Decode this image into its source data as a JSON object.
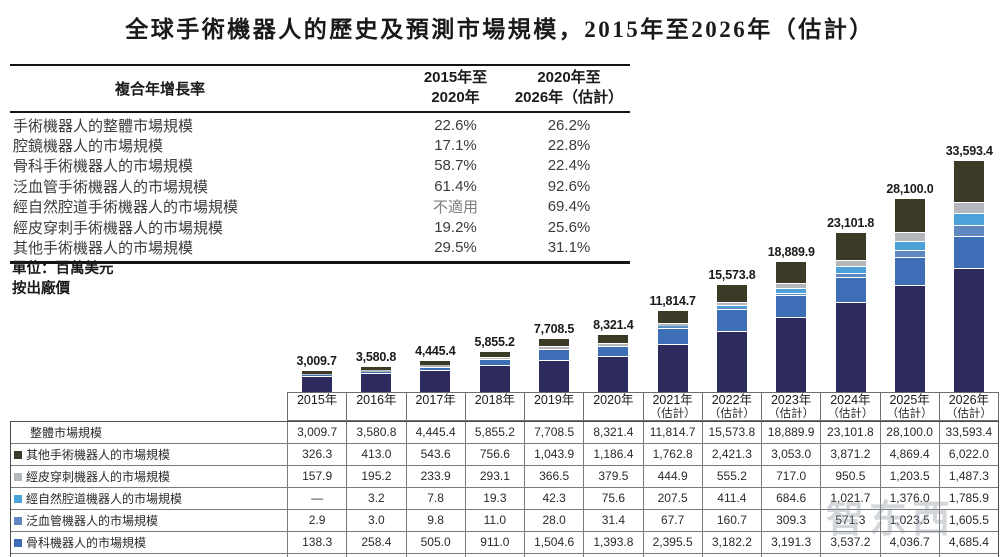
{
  "title": "全球手術機器人的歷史及預測市場規模，2015年至2026年（估計）",
  "cagr": {
    "header_label": "複合年增長率",
    "col1_line1": "2015年至",
    "col1_line2": "2020年",
    "col2_line1": "2020年至",
    "col2_line2": "2026年（估計）",
    "na_text": "不適用",
    "rows": [
      {
        "label": "手術機器人的整體市場規模",
        "v1": "22.6%",
        "v2": "26.2%"
      },
      {
        "label": "腔鏡機器人的市場規模",
        "v1": "17.1%",
        "v2": "22.8%"
      },
      {
        "label": "骨科手術機器人的市場規模",
        "v1": "58.7%",
        "v2": "22.4%"
      },
      {
        "label": "泛血管手術機器人的市場規模",
        "v1": "61.4%",
        "v2": "92.6%"
      },
      {
        "label": "經自然腔道手術機器人的市場規模",
        "v1": "不適用",
        "v2": "69.4%"
      },
      {
        "label": "經皮穿刺手術機器人的市場規模",
        "v1": "19.2%",
        "v2": "25.6%"
      },
      {
        "label": "其他手術機器人的市場規模",
        "v1": "29.5%",
        "v2": "31.1%"
      }
    ]
  },
  "unit_note_line1": "單位：百萬美元",
  "unit_note_line2": "按出廠價",
  "chart_data": {
    "type": "bar",
    "subtype": "stacked",
    "unit": "百萬美元",
    "categories": [
      "2015年",
      "2016年",
      "2017年",
      "2018年",
      "2019年",
      "2020年",
      "2021年",
      "2022年",
      "2023年",
      "2024年",
      "2025年",
      "2026年"
    ],
    "estimate_note": "（估計）",
    "estimate_from_index": 6,
    "total_label": "整體市場規模",
    "totals": [
      3009.7,
      3580.8,
      4445.4,
      5855.2,
      7708.5,
      8321.4,
      11814.7,
      15573.8,
      18889.9,
      23101.8,
      28100.0,
      33593.4
    ],
    "ylim": [
      0,
      33593.4
    ],
    "grid": false,
    "legend_position": "table-left",
    "series": [
      {
        "name": "其他手術機器人的市場規模",
        "color": "#3a3a26",
        "values": [
          326.3,
          413.0,
          543.6,
          756.6,
          1043.9,
          1186.4,
          1762.8,
          2421.3,
          3053.0,
          3871.2,
          4869.4,
          6022.0
        ]
      },
      {
        "name": "經皮穿刺機器人的市場規模",
        "color": "#b4b7bb",
        "values": [
          157.9,
          195.2,
          233.9,
          293.1,
          366.5,
          379.5,
          444.9,
          555.2,
          717.0,
          950.5,
          1203.5,
          1487.3
        ]
      },
      {
        "name": "經自然腔道機器人的市場規模",
        "color": "#4ba1d8",
        "values": [
          null,
          3.2,
          7.8,
          19.3,
          42.3,
          75.6,
          207.5,
          411.4,
          684.6,
          1021.7,
          1376.0,
          1785.9
        ]
      },
      {
        "name": "泛血管機器人的市場規模",
        "color": "#5f87c0",
        "values": [
          2.9,
          3.0,
          9.8,
          11.0,
          28.0,
          31.4,
          67.7,
          160.7,
          309.3,
          571.3,
          1023.5,
          1605.5
        ]
      },
      {
        "name": "骨科機器人的市場規模",
        "color": "#3e6eb5",
        "values": [
          138.3,
          258.4,
          505.0,
          911.0,
          1504.6,
          1393.8,
          2395.5,
          3182.2,
          3191.3,
          3537.2,
          4036.7,
          4685.4
        ]
      },
      {
        "name": "腔鏡機器人的市場規模",
        "color": "#2d2a5e",
        "values": [
          2384.4,
          2708.0,
          3145.3,
          3864.2,
          4723.2,
          5254.8,
          6936.3,
          8843.1,
          10934.9,
          13149.9,
          15590.8,
          18007.4
        ]
      }
    ],
    "missing_value_text": "—"
  },
  "watermark": "智东西"
}
